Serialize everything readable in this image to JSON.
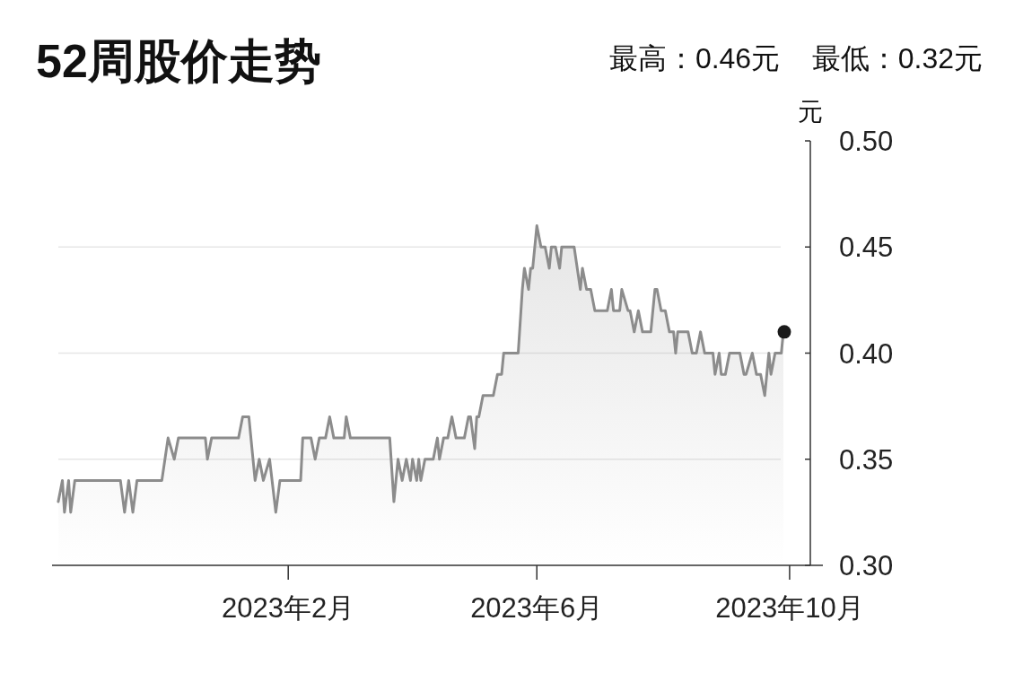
{
  "chart_data": {
    "type": "area",
    "title": "52周股价走势",
    "subtitle": "最高：0.46元    最低：0.32元",
    "ylabel": "元",
    "xlim": [
      "2022-10-10",
      "2023-10-11"
    ],
    "xticks": [
      {
        "value": "2023-02-01",
        "label": "2023年2月"
      },
      {
        "value": "2023-06-01",
        "label": "2023年6月"
      },
      {
        "value": "2023-10-01",
        "label": "2023年10月"
      }
    ],
    "ylim": [
      0.3,
      0.5
    ],
    "yticks": [
      {
        "value": 0.3,
        "label": "0.30"
      },
      {
        "value": 0.35,
        "label": "0.35"
      },
      {
        "value": 0.4,
        "label": "0.40"
      },
      {
        "value": 0.45,
        "label": "0.45"
      },
      {
        "value": 0.5,
        "label": "0.50"
      }
    ],
    "grid": "y",
    "series": [
      {
        "color": "#8c8c8c",
        "x": [
          "2022-10-13",
          "2022-10-15",
          "2022-10-16",
          "2022-10-18",
          "2022-10-19",
          "2022-10-21",
          "2022-11-12",
          "2022-11-14",
          "2022-11-16",
          "2022-11-18",
          "2022-11-20",
          "2022-12-02",
          "2022-12-05",
          "2022-12-08",
          "2022-12-10",
          "2022-12-23",
          "2022-12-24",
          "2022-12-26",
          "2023-01-08",
          "2023-01-10",
          "2023-01-13",
          "2023-01-16",
          "2023-01-18",
          "2023-01-20",
          "2023-01-23",
          "2023-01-26",
          "2023-01-28",
          "2023-02-07",
          "2023-02-08",
          "2023-02-12",
          "2023-02-14",
          "2023-02-16",
          "2023-02-19",
          "2023-02-21",
          "2023-02-23",
          "2023-02-28",
          "2023-03-01",
          "2023-03-03",
          "2023-03-22",
          "2023-03-24",
          "2023-03-26",
          "2023-03-28",
          "2023-03-30",
          "2023-04-01",
          "2023-04-02",
          "2023-04-04",
          "2023-04-05",
          "2023-04-06",
          "2023-04-08",
          "2023-04-12",
          "2023-04-14",
          "2023-04-15",
          "2023-04-17",
          "2023-04-19",
          "2023-04-21",
          "2023-04-23",
          "2023-04-27",
          "2023-04-29",
          "2023-04-30",
          "2023-05-02",
          "2023-05-03",
          "2023-05-04",
          "2023-05-06",
          "2023-05-11",
          "2023-05-13",
          "2023-05-15",
          "2023-05-16",
          "2023-05-23",
          "2023-05-25",
          "2023-05-26",
          "2023-05-28",
          "2023-05-29",
          "2023-05-30",
          "2023-06-01",
          "2023-06-03",
          "2023-06-05",
          "2023-06-07",
          "2023-06-08",
          "2023-06-10",
          "2023-06-12",
          "2023-06-13",
          "2023-06-19",
          "2023-06-22",
          "2023-06-23",
          "2023-06-25",
          "2023-06-27",
          "2023-06-29",
          "2023-07-05",
          "2023-07-07",
          "2023-07-08",
          "2023-07-11",
          "2023-07-12",
          "2023-07-15",
          "2023-07-16",
          "2023-07-18",
          "2023-07-20",
          "2023-07-22",
          "2023-07-26",
          "2023-07-28",
          "2023-07-29",
          "2023-07-31",
          "2023-08-02",
          "2023-08-04",
          "2023-08-06",
          "2023-08-07",
          "2023-08-08",
          "2023-08-13",
          "2023-08-15",
          "2023-08-17",
          "2023-08-19",
          "2023-08-21",
          "2023-08-25",
          "2023-08-26",
          "2023-08-28",
          "2023-08-29",
          "2023-08-31",
          "2023-09-02",
          "2023-09-07",
          "2023-09-09",
          "2023-09-10",
          "2023-09-13",
          "2023-09-15",
          "2023-09-17",
          "2023-09-19",
          "2023-09-21",
          "2023-09-22",
          "2023-09-24",
          "2023-09-27",
          "2023-09-28"
        ],
        "values": [
          0.33,
          0.34,
          0.325,
          0.34,
          0.325,
          0.34,
          0.34,
          0.325,
          0.34,
          0.325,
          0.34,
          0.34,
          0.36,
          0.35,
          0.36,
          0.36,
          0.35,
          0.36,
          0.36,
          0.37,
          0.37,
          0.34,
          0.35,
          0.34,
          0.35,
          0.325,
          0.34,
          0.34,
          0.36,
          0.36,
          0.35,
          0.36,
          0.36,
          0.37,
          0.36,
          0.36,
          0.37,
          0.36,
          0.36,
          0.33,
          0.35,
          0.34,
          0.35,
          0.34,
          0.35,
          0.34,
          0.35,
          0.34,
          0.35,
          0.35,
          0.36,
          0.35,
          0.36,
          0.36,
          0.37,
          0.36,
          0.36,
          0.37,
          0.37,
          0.355,
          0.37,
          0.37,
          0.38,
          0.38,
          0.39,
          0.39,
          0.4,
          0.4,
          0.43,
          0.44,
          0.43,
          0.44,
          0.44,
          0.46,
          0.45,
          0.45,
          0.44,
          0.45,
          0.45,
          0.44,
          0.45,
          0.45,
          0.43,
          0.44,
          0.43,
          0.43,
          0.42,
          0.42,
          0.43,
          0.42,
          0.42,
          0.43,
          0.42,
          0.42,
          0.41,
          0.42,
          0.41,
          0.41,
          0.43,
          0.43,
          0.42,
          0.42,
          0.41,
          0.41,
          0.4,
          0.41,
          0.41,
          0.4,
          0.4,
          0.41,
          0.4,
          0.4,
          0.39,
          0.4,
          0.39,
          0.39,
          0.4,
          0.4,
          0.39,
          0.39,
          0.4,
          0.39,
          0.39,
          0.38,
          0.4,
          0.39,
          0.4,
          0.4,
          0.41
        ]
      },
      {
        "type": "scatter",
        "color": "#1a1a1a",
        "marker": "circle",
        "x": [
          "2023-09-28"
        ],
        "values": [
          0.41
        ]
      }
    ]
  }
}
